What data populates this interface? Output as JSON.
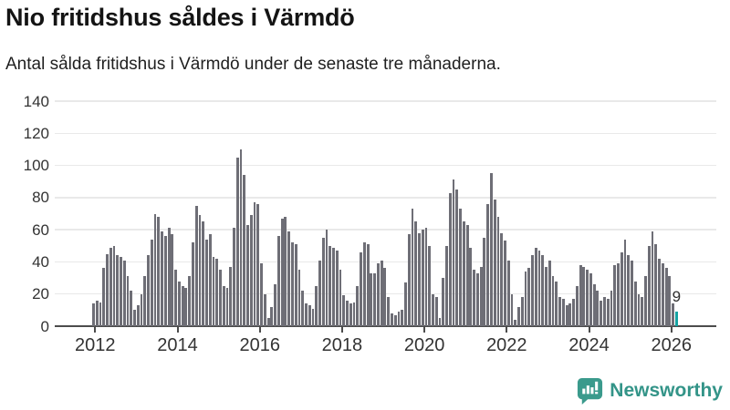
{
  "header": {
    "title": "Nio fritidshus såldes i Värmdö",
    "subtitle": "Antal sålda fritidshus i Värmdö under de senaste tre månaderna."
  },
  "chart_data": {
    "type": "bar",
    "title": "Nio fritidshus såldes i Värmdö",
    "subtitle": "Antal sålda fritidshus i Värmdö under de senaste tre månaderna.",
    "start_year": 2012,
    "x_tick_labels": [
      "2012",
      "2014",
      "2016",
      "2018",
      "2020",
      "2022",
      "2024",
      "2026"
    ],
    "y_ticks": [
      0,
      20,
      40,
      60,
      80,
      100,
      120,
      140
    ],
    "ylim": [
      0,
      140
    ],
    "grid": "horizontal",
    "bar_color": "#6e6e76",
    "highlight_color": "#16a3a3",
    "highlight_last_bar": true,
    "annotation": {
      "text": "9",
      "applies_to": "last-bar"
    },
    "values": [
      14,
      16,
      15,
      36,
      45,
      49,
      50,
      44,
      43,
      41,
      31,
      22,
      10,
      13,
      20,
      31,
      44,
      54,
      70,
      68,
      59,
      56,
      61,
      57,
      35,
      28,
      25,
      24,
      31,
      52,
      75,
      69,
      65,
      54,
      57,
      43,
      42,
      35,
      25,
      24,
      37,
      61,
      105,
      110,
      94,
      63,
      69,
      77,
      76,
      39,
      20,
      5,
      12,
      26,
      56,
      67,
      68,
      59,
      52,
      51,
      35,
      22,
      14,
      13,
      11,
      25,
      41,
      55,
      60,
      50,
      49,
      47,
      35,
      19,
      16,
      14,
      15,
      25,
      46,
      52,
      51,
      33,
      33,
      39,
      41,
      36,
      18,
      8,
      7,
      9,
      10,
      27,
      57,
      73,
      65,
      58,
      60,
      61,
      50,
      20,
      18,
      5,
      30,
      50,
      83,
      91,
      85,
      73,
      65,
      63,
      49,
      35,
      33,
      37,
      55,
      76,
      95,
      79,
      68,
      58,
      53,
      41,
      20,
      4,
      12,
      18,
      34,
      36,
      44,
      49,
      47,
      44,
      37,
      41,
      31,
      28,
      18,
      17,
      13,
      14,
      17,
      25,
      38,
      37,
      35,
      33,
      26,
      22,
      16,
      18,
      17,
      22,
      38,
      39,
      46,
      54,
      44,
      41,
      28,
      20,
      18,
      31,
      50,
      59,
      51,
      42,
      39,
      36,
      31,
      14,
      9
    ]
  },
  "footer": {
    "brand": "Newsworthy",
    "brand_color": "#339488",
    "icon_color": "#3a9a8c"
  }
}
